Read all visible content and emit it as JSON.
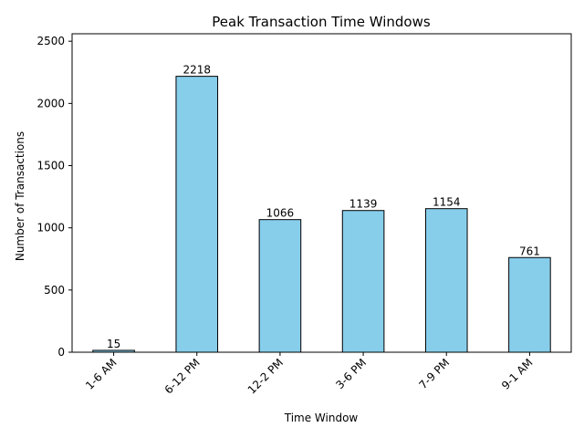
{
  "chart_data": {
    "type": "bar",
    "title": "Peak Transaction Time Windows",
    "xlabel": "Time Window",
    "ylabel": "Number of Transactions",
    "categories": [
      "1-6 AM",
      "6-12 PM",
      "12-2 PM",
      "3-6 PM",
      "7-9 PM",
      "9-1 AM"
    ],
    "values": [
      15,
      2218,
      1066,
      1139,
      1154,
      761
    ],
    "ylim": [
      0,
      2560
    ],
    "yticks": [
      0,
      500,
      1000,
      1500,
      2000,
      2500
    ],
    "grid": false,
    "bar_color": "#87CEEB",
    "edge_color": "#000000"
  }
}
